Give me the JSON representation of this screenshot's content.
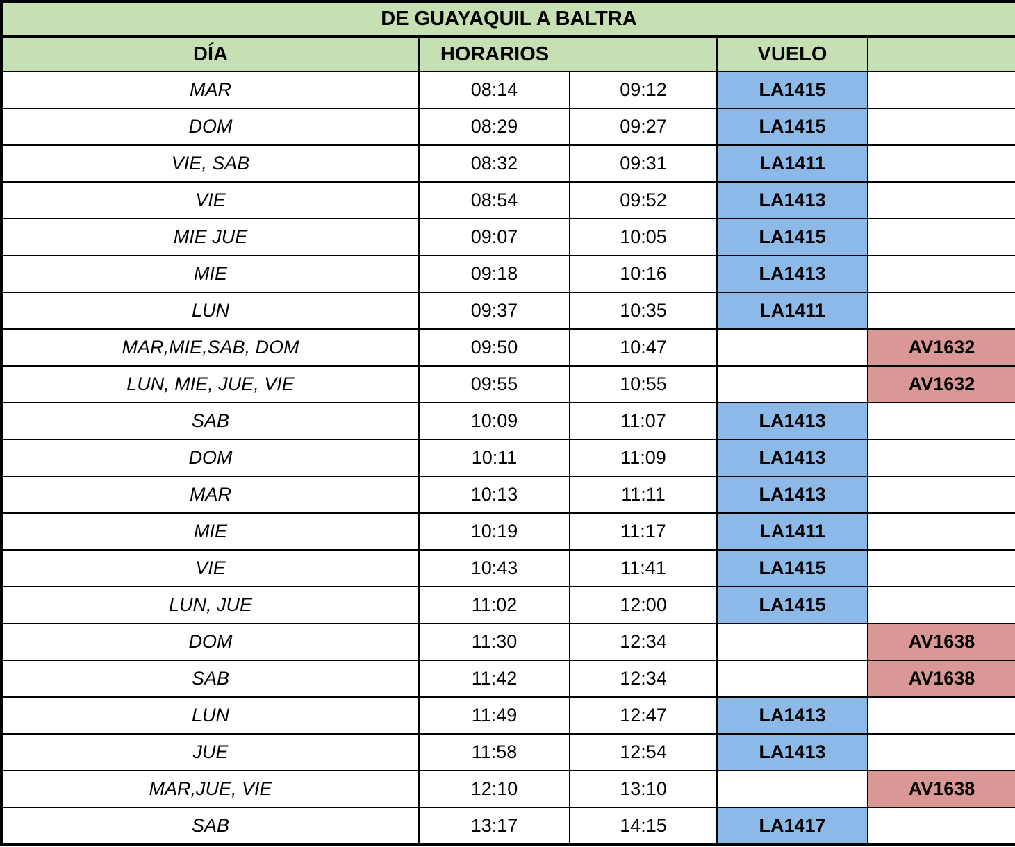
{
  "table": {
    "title": "DE GUAYAQUIL A BALTRA",
    "headers": {
      "dia": "DÍA",
      "horarios": "HORARIOS",
      "vuelo": "VUELO"
    },
    "colors": {
      "header_green": "#C6E0B4",
      "la_blue": "#8DB9E8",
      "av_red": "#D99795",
      "border": "#000000"
    },
    "rows": [
      {
        "day": "MAR",
        "departure": "08:14",
        "arrival": "09:12",
        "flight": "LA1415",
        "airline": "LA"
      },
      {
        "day": "DOM",
        "departure": "08:29",
        "arrival": "09:27",
        "flight": "LA1415",
        "airline": "LA"
      },
      {
        "day": "VIE, SAB",
        "departure": "08:32",
        "arrival": "09:31",
        "flight": "LA1411",
        "airline": "LA"
      },
      {
        "day": "VIE",
        "departure": "08:54",
        "arrival": "09:52",
        "flight": "LA1413",
        "airline": "LA"
      },
      {
        "day": "MIE JUE",
        "departure": "09:07",
        "arrival": "10:05",
        "flight": "LA1415",
        "airline": "LA"
      },
      {
        "day": "MIE",
        "departure": "09:18",
        "arrival": "10:16",
        "flight": "LA1413",
        "airline": "LA"
      },
      {
        "day": "LUN",
        "departure": "09:37",
        "arrival": "10:35",
        "flight": "LA1411",
        "airline": "LA"
      },
      {
        "day": "MAR,MIE,SAB, DOM",
        "departure": "09:50",
        "arrival": "10:47",
        "flight": "AV1632",
        "airline": "AV"
      },
      {
        "day": "LUN, MIE, JUE, VIE",
        "departure": "09:55",
        "arrival": "10:55",
        "flight": "AV1632",
        "airline": "AV"
      },
      {
        "day": "SAB",
        "departure": "10:09",
        "arrival": "11:07",
        "flight": "LA1413",
        "airline": "LA"
      },
      {
        "day": "DOM",
        "departure": "10:11",
        "arrival": "11:09",
        "flight": "LA1413",
        "airline": "LA"
      },
      {
        "day": "MAR",
        "departure": "10:13",
        "arrival": "11:11",
        "flight": "LA1413",
        "airline": "LA"
      },
      {
        "day": "MIE",
        "departure": "10:19",
        "arrival": "11:17",
        "flight": "LA1411",
        "airline": "LA"
      },
      {
        "day": "VIE",
        "departure": "10:43",
        "arrival": "11:41",
        "flight": "LA1415",
        "airline": "LA"
      },
      {
        "day": "LUN, JUE",
        "departure": "11:02",
        "arrival": "12:00",
        "flight": "LA1415",
        "airline": "LA"
      },
      {
        "day": "DOM",
        "departure": "11:30",
        "arrival": "12:34",
        "flight": "AV1638",
        "airline": "AV"
      },
      {
        "day": "SAB",
        "departure": "11:42",
        "arrival": "12:34",
        "flight": "AV1638",
        "airline": "AV"
      },
      {
        "day": "LUN",
        "departure": "11:49",
        "arrival": "12:47",
        "flight": "LA1413",
        "airline": "LA"
      },
      {
        "day": "JUE",
        "departure": "11:58",
        "arrival": "12:54",
        "flight": "LA1413",
        "airline": "LA"
      },
      {
        "day": "MAR,JUE, VIE",
        "departure": "12:10",
        "arrival": "13:10",
        "flight": "AV1638",
        "airline": "AV"
      },
      {
        "day": "SAB",
        "departure": "13:17",
        "arrival": "14:15",
        "flight": "LA1417",
        "airline": "LA"
      }
    ]
  }
}
